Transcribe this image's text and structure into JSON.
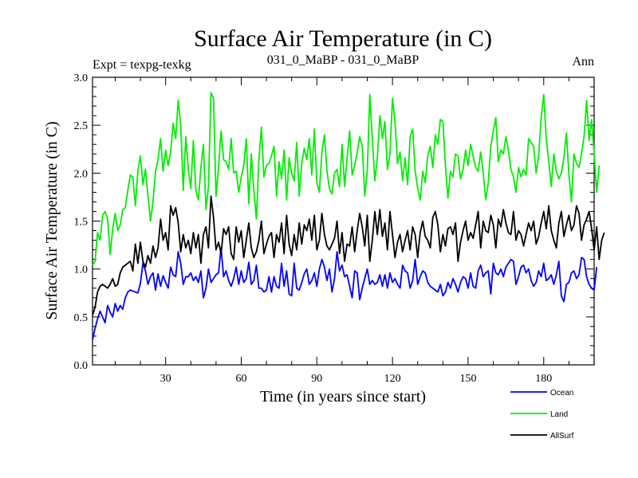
{
  "chart_data": {
    "type": "line",
    "title": "Surface Air Temperature (in C)",
    "subtitle_left": "Expt = texpg-texkg",
    "subtitle_center": "031_0_MaBP - 031_0_MaBP",
    "subtitle_right": "Ann",
    "xlabel": "Time (in years since start)",
    "ylabel": "Surface Air Temperature (in C)",
    "xlim": [
      1,
      200
    ],
    "ylim": [
      0.0,
      3.0
    ],
    "xticks": [
      30,
      60,
      90,
      120,
      150,
      180
    ],
    "xtick_labels": [
      "30",
      "60",
      "90",
      "120",
      "150",
      "180"
    ],
    "yticks": [
      0.0,
      0.5,
      1.0,
      1.5,
      2.0,
      2.5,
      3.0
    ],
    "ytick_labels": [
      "0.0",
      "0.5",
      "1.0",
      "1.5",
      "2.0",
      "2.5",
      "3.0"
    ],
    "x_start": 1,
    "x_step": 1,
    "series": [
      {
        "name": "Ocean",
        "color": "#0000ff",
        "values": [
          0.26,
          0.38,
          0.48,
          0.56,
          0.5,
          0.44,
          0.62,
          0.55,
          0.5,
          0.64,
          0.56,
          0.62,
          0.58,
          0.7,
          0.76,
          0.78,
          0.77,
          0.76,
          0.75,
          0.85,
          1.06,
          0.98,
          0.84,
          0.92,
          0.96,
          0.78,
          0.95,
          0.82,
          0.93,
          0.86,
          0.8,
          1.02,
          0.94,
          0.92,
          1.18,
          1.06,
          0.84,
          0.92,
          0.92,
          0.96,
          0.88,
          0.92,
          0.86,
          0.98,
          0.7,
          0.8,
          1.0,
          0.86,
          0.9,
          0.94,
          0.96,
          1.22,
          0.92,
          0.98,
          0.88,
          0.82,
          0.9,
          1.02,
          0.84,
          0.98,
          0.86,
          0.9,
          1.07,
          0.84,
          0.88,
          1.04,
          0.8,
          0.8,
          0.76,
          0.78,
          0.92,
          0.76,
          0.92,
          0.82,
          0.8,
          1.06,
          0.82,
          0.98,
          0.74,
          0.72,
          1.06,
          0.8,
          0.78,
          0.86,
          0.95,
          1.0,
          0.84,
          0.88,
          0.96,
          0.82,
          1.0,
          1.1,
          1.02,
          0.88,
          1.0,
          0.76,
          0.9,
          1.18,
          0.98,
          1.04,
          0.92,
          0.94,
          0.82,
          0.7,
          0.98,
          0.96,
          0.68,
          0.8,
          0.9,
          1.0,
          0.84,
          0.88,
          0.84,
          0.86,
          0.94,
          0.82,
          0.94,
          0.8,
          0.96,
          0.86,
          0.9,
          0.84,
          0.8,
          1.04,
          0.98,
          0.96,
          0.8,
          0.88,
          1.1,
          0.84,
          0.92,
          0.98,
          0.96,
          0.86,
          0.82,
          0.8,
          0.78,
          0.76,
          0.84,
          0.72,
          0.76,
          0.86,
          0.8,
          0.9,
          0.84,
          0.76,
          0.86,
          0.92,
          0.9,
          0.8,
          0.96,
          0.82,
          0.8,
          0.98,
          1.04,
          0.92,
          0.96,
          0.98,
          0.74,
          1.06,
          0.96,
          0.94,
          1.0,
          0.92,
          1.02,
          1.06,
          1.1,
          1.08,
          0.84,
          0.92,
          1.02,
          1.04,
          0.96,
          1.0,
          0.88,
          0.82,
          0.86,
          0.98,
          0.92,
          1.06,
          0.88,
          0.9,
          0.94,
          0.84,
          0.94,
          1.08,
          0.72,
          0.66,
          0.84,
          0.86,
          0.96,
          0.98,
          0.9,
          0.94,
          1.12,
          1.1,
          0.92,
          0.84,
          0.8,
          0.78,
          1.02
        ]
      },
      {
        "name": "Land",
        "color": "#00ee00",
        "values": [
          1.04,
          1.08,
          1.38,
          1.3,
          1.56,
          1.6,
          1.52,
          1.15,
          1.42,
          1.58,
          1.4,
          1.46,
          1.62,
          1.64,
          1.82,
          1.98,
          1.96,
          1.66,
          2.02,
          2.18,
          1.88,
          2.04,
          1.76,
          1.5,
          1.7,
          2.02,
          2.14,
          2.36,
          2.02,
          2.24,
          2.08,
          2.22,
          2.52,
          2.36,
          2.76,
          2.5,
          1.82,
          2.38,
          2.04,
          1.84,
          2.34,
          1.82,
          1.72,
          2.06,
          2.3,
          1.62,
          1.86,
          2.84,
          2.78,
          1.76,
          2.06,
          2.44,
          2.14,
          2.12,
          2.04,
          2.36,
          2.0,
          2.02,
          1.8,
          1.96,
          2.08,
          2.36,
          1.68,
          2.2,
          1.82,
          1.52,
          2.14,
          2.48,
          1.96,
          2.08,
          2.1,
          2.18,
          2.28,
          1.76,
          2.12,
          1.94,
          2.24,
          1.72,
          2.16,
          2.0,
          1.92,
          2.32,
          1.76,
          2.1,
          2.26,
          2.14,
          2.36,
          1.98,
          2.46,
          1.9,
          1.8,
          2.22,
          2.4,
          2.02,
          1.84,
          1.78,
          2.0,
          2.04,
          1.86,
          2.3,
          1.86,
          2.16,
          2.44,
          1.98,
          2.08,
          2.22,
          2.38,
          2.28,
          1.76,
          2.02,
          2.82,
          2.36,
          1.92,
          2.16,
          2.6,
          2.36,
          2.54,
          2.04,
          2.2,
          2.78,
          2.54,
          2.1,
          2.22,
          1.92,
          2.16,
          1.88,
          2.38,
          2.46,
          2.02,
          1.84,
          1.72,
          2.02,
          1.9,
          2.18,
          2.28,
          2.06,
          2.4,
          2.3,
          2.56,
          2.54,
          2.08,
          1.74,
          2.02,
          1.96,
          2.2,
          2.18,
          1.94,
          2.04,
          2.24,
          2.08,
          2.3,
          2.18,
          2.06,
          2.02,
          2.22,
          2.0,
          1.72,
          1.9,
          2.28,
          2.44,
          2.58,
          2.12,
          2.24,
          2.2,
          2.38,
          2.24,
          2.04,
          1.96,
          1.8,
          2.06,
          1.96,
          2.04,
          1.98,
          2.36,
          2.32,
          2.28,
          2.0,
          2.18,
          2.58,
          2.82,
          2.36,
          2.12,
          1.86,
          2.2,
          2.02,
          1.94,
          2.0,
          2.16,
          2.42,
          1.98,
          1.7,
          2.2,
          2.1,
          2.06,
          2.2,
          2.38,
          2.76,
          2.34,
          2.56,
          2.2,
          1.8,
          2.08
        ]
      },
      {
        "name": "AllSurf",
        "color": "#000000",
        "values": [
          0.52,
          0.6,
          0.76,
          0.82,
          0.84,
          0.82,
          0.8,
          0.84,
          0.9,
          0.82,
          0.84,
          0.96,
          1.02,
          1.04,
          1.06,
          1.08,
          0.98,
          1.26,
          1.06,
          1.28,
          1.08,
          1.02,
          1.14,
          1.06,
          1.24,
          1.12,
          1.22,
          1.52,
          1.3,
          1.38,
          1.2,
          1.66,
          1.56,
          1.64,
          1.48,
          1.18,
          1.36,
          1.22,
          1.3,
          1.16,
          1.38,
          1.22,
          1.36,
          1.06,
          1.36,
          1.44,
          1.22,
          1.76,
          1.54,
          1.2,
          1.28,
          1.16,
          1.42,
          1.36,
          1.44,
          1.16,
          1.1,
          1.44,
          1.28,
          1.4,
          1.12,
          1.3,
          1.48,
          1.22,
          1.12,
          1.18,
          1.3,
          1.5,
          1.16,
          1.26,
          1.34,
          1.38,
          1.12,
          1.36,
          1.28,
          1.48,
          1.16,
          1.56,
          1.26,
          1.14,
          1.36,
          1.2,
          1.48,
          1.26,
          1.46,
          1.4,
          1.52,
          1.3,
          1.56,
          1.2,
          1.3,
          1.58,
          1.36,
          1.24,
          1.2,
          1.26,
          1.32,
          1.5,
          1.16,
          1.38,
          1.08,
          1.26,
          1.24,
          1.44,
          1.18,
          1.4,
          1.58,
          1.44,
          1.24,
          1.56,
          1.08,
          1.3,
          1.6,
          1.36,
          1.62,
          1.34,
          1.48,
          1.2,
          1.6,
          1.36,
          1.12,
          1.28,
          1.36,
          1.18,
          1.3,
          1.4,
          1.2,
          1.44,
          1.36,
          1.12,
          1.38,
          1.5,
          1.34,
          1.3,
          1.22,
          1.54,
          1.6,
          1.46,
          1.18,
          1.36,
          1.24,
          1.42,
          1.44,
          1.36,
          1.48,
          1.08,
          1.28,
          1.4,
          1.5,
          1.3,
          1.38,
          1.32,
          1.46,
          1.6,
          1.22,
          1.5,
          1.4,
          1.38,
          1.56,
          1.46,
          1.22,
          1.52,
          1.44,
          1.62,
          1.48,
          1.38,
          1.36,
          1.6,
          1.3,
          1.4,
          1.36,
          1.24,
          1.36,
          1.48,
          1.4,
          1.5,
          1.26,
          1.34,
          1.48,
          1.6,
          1.42,
          1.66,
          1.4,
          1.3,
          1.22,
          1.48,
          1.6,
          1.34,
          1.46,
          1.56,
          1.4,
          1.46,
          1.66,
          1.58,
          1.3,
          1.46,
          1.52,
          1.6,
          1.42,
          1.2,
          1.44,
          1.1,
          1.3,
          1.38
        ]
      }
    ]
  }
}
